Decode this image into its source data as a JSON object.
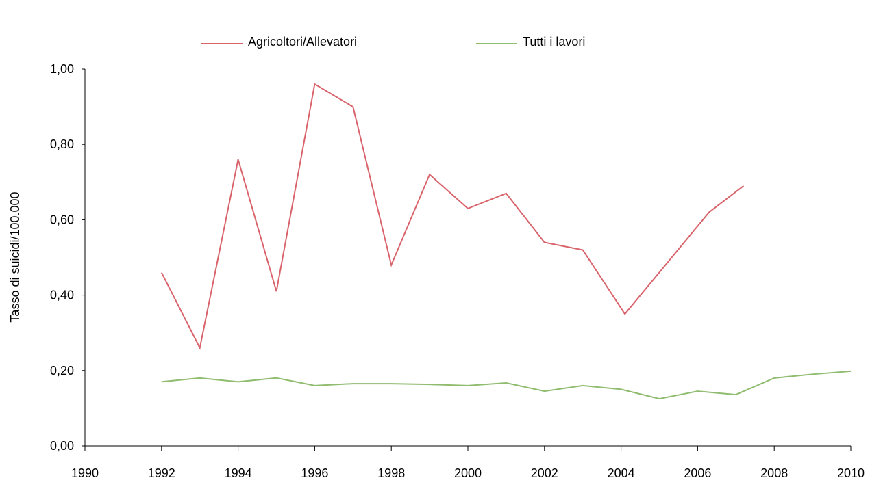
{
  "chart_data": {
    "type": "line",
    "title": "",
    "xlabel": "",
    "ylabel": "Tasso di suicidi/100.000",
    "xlim": [
      1990,
      2010
    ],
    "ylim": [
      0,
      1
    ],
    "x_ticks": [
      "1990",
      "1992",
      "1994",
      "1996",
      "1998",
      "2000",
      "2002",
      "2004",
      "2006",
      "2008",
      "2010"
    ],
    "y_ticks": [
      "0,00",
      "0,20",
      "0,40",
      "0,60",
      "0,80",
      "1,00"
    ],
    "grid": false,
    "legend_position": "top",
    "series": [
      {
        "name": "Agricoltori/Allevatori",
        "color": "#d9636b",
        "x": [
          1992,
          1993,
          1994,
          1995,
          1996,
          1997,
          1998,
          1999,
          2000,
          2001,
          2002,
          2003,
          2004.1,
          2006.3,
          2007.2
        ],
        "values": [
          0.46,
          0.26,
          0.76,
          0.41,
          0.96,
          0.9,
          0.48,
          0.72,
          0.63,
          0.67,
          0.54,
          0.52,
          0.35,
          0.62,
          0.69
        ]
      },
      {
        "name": "Tutti i lavori",
        "color": "#8fbc6e",
        "x": [
          1992,
          1993,
          1994,
          1995,
          1996,
          1997,
          1998,
          1999,
          2000,
          2001,
          2002,
          2003,
          2004,
          2005,
          2006,
          2007,
          2008,
          2009,
          2010
        ],
        "values": [
          0.17,
          0.18,
          0.17,
          0.18,
          0.16,
          0.165,
          0.165,
          0.163,
          0.16,
          0.167,
          0.145,
          0.16,
          0.15,
          0.125,
          0.145,
          0.136,
          0.18,
          0.19,
          0.198
        ]
      }
    ]
  }
}
